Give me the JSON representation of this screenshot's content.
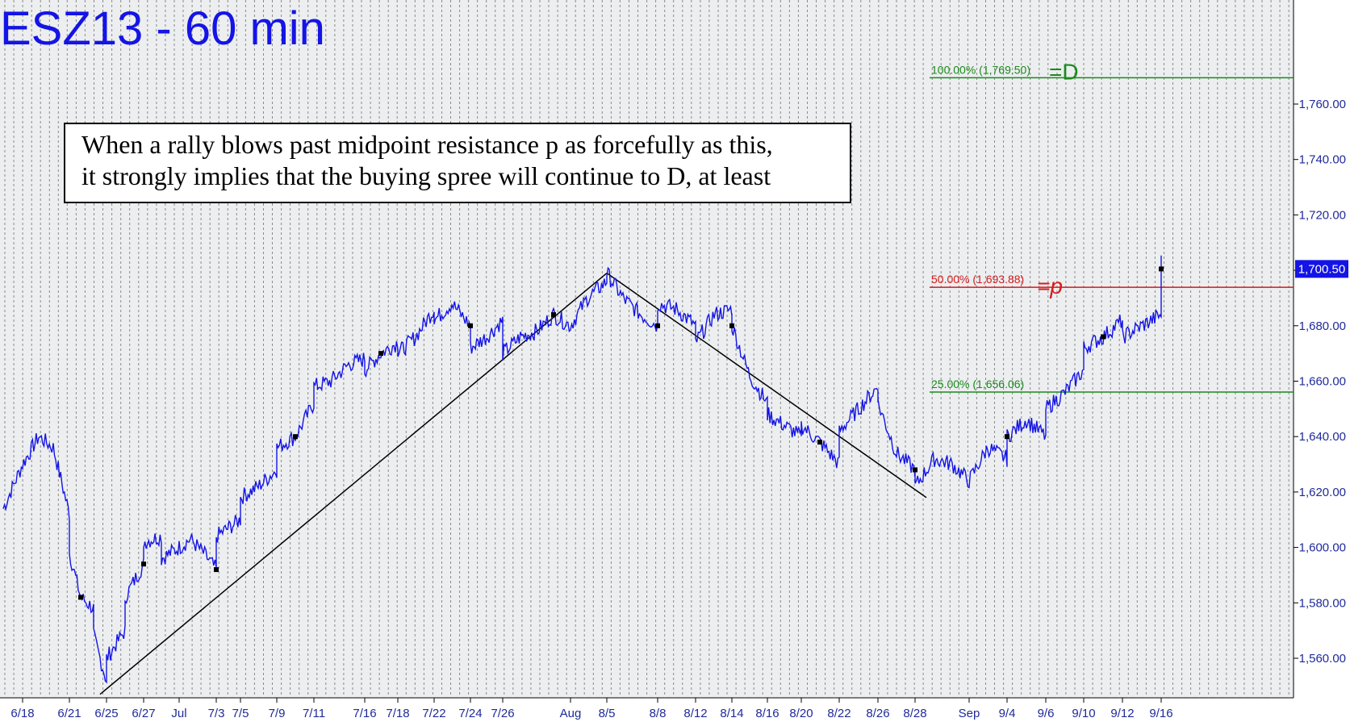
{
  "title": "ESZ13 - 60 min",
  "annotation": {
    "line1": "When a rally blows past midpoint resistance p as forcefully as this,",
    "line2": "it strongly implies that the buying spree will continue to D, at least"
  },
  "colors": {
    "price": "#1414e6",
    "trendline": "#000000",
    "fib_green": "#1a8a1a",
    "fib_red": "#d41c1c",
    "grid": "#8a8a8a",
    "axis_text": "#1f2a99",
    "background": "#eceef0"
  },
  "chart_data": {
    "type": "line",
    "title": "ESZ13 - 60 min",
    "x_tick_labels": [
      "6/18",
      "6/21",
      "6/25",
      "6/27",
      "Jul",
      "7/3",
      "7/5",
      "7/9",
      "7/11",
      "7/16",
      "7/18",
      "7/22",
      "7/24",
      "7/26",
      "Aug",
      "8/5",
      "8/8",
      "8/12",
      "8/14",
      "8/16",
      "8/20",
      "8/22",
      "8/26",
      "8/28",
      "Sep",
      "9/4",
      "9/6",
      "9/10",
      "9/12",
      "9/16"
    ],
    "y_ticks": [
      "1,560.00",
      "1,580.00",
      "1,600.00",
      "1,620.00",
      "1,640.00",
      "1,660.00",
      "1,680.00",
      "1,700.00",
      "1,720.00",
      "1,740.00",
      "1,760.00"
    ],
    "ylim": [
      1545,
      1780
    ],
    "grid": true,
    "last_price": {
      "value": 1700.5,
      "label": "1,700.50"
    },
    "fib_levels": [
      {
        "pct": "100.00%",
        "value": 1769.5,
        "label": "100.00% (1,769.50)",
        "marker": "=D",
        "color": "green"
      },
      {
        "pct": "50.00%",
        "value": 1693.88,
        "label": "50.00% (1,693.88)",
        "marker": "=p",
        "color": "red"
      },
      {
        "pct": "25.00%",
        "value": 1656.06,
        "label": "25.00% (1,656.06)",
        "color": "green"
      }
    ],
    "trendlines": [
      {
        "from": {
          "x": "6/25",
          "y": 1547
        },
        "to": {
          "x": "8/5",
          "y": 1699
        }
      },
      {
        "from": {
          "x": "8/5",
          "y": 1699
        },
        "to": {
          "x": "8/28",
          "y": 1618
        }
      }
    ],
    "series": [
      {
        "points": [
          [
            "6/17",
            1614
          ],
          [
            "6/18",
            1630
          ],
          [
            "6/19",
            1640
          ],
          [
            "6/20",
            1636
          ],
          [
            "6/21",
            1612
          ],
          [
            "6/21",
            1598
          ],
          [
            "6/22",
            1582
          ],
          [
            "6/24",
            1578
          ],
          [
            "6/24",
            1568
          ],
          [
            "6/25",
            1552
          ],
          [
            "6/25",
            1560
          ],
          [
            "6/26",
            1570
          ],
          [
            "6/26",
            1582
          ],
          [
            "6/27",
            1594
          ],
          [
            "6/27",
            1602
          ],
          [
            "6/28",
            1604
          ],
          [
            "6/28",
            1596
          ],
          [
            "Jul",
            1600
          ],
          [
            "7/1",
            1603
          ],
          [
            "7/2",
            1598
          ],
          [
            "7/3",
            1592
          ],
          [
            "7/3",
            1604
          ],
          [
            "7/5",
            1610
          ],
          [
            "7/5",
            1618
          ],
          [
            "7/8",
            1622
          ],
          [
            "7/9",
            1628
          ],
          [
            "7/9",
            1636
          ],
          [
            "7/10",
            1640
          ],
          [
            "7/11",
            1652
          ],
          [
            "7/11",
            1658
          ],
          [
            "7/12",
            1660
          ],
          [
            "7/15",
            1666
          ],
          [
            "7/16",
            1668
          ],
          [
            "7/16",
            1664
          ],
          [
            "7/17",
            1670
          ],
          [
            "7/18",
            1674
          ],
          [
            "7/18",
            1670
          ],
          [
            "7/19",
            1676
          ],
          [
            "7/22",
            1686
          ],
          [
            "7/22",
            1682
          ],
          [
            "7/23",
            1688
          ],
          [
            "7/24",
            1680
          ],
          [
            "7/24",
            1672
          ],
          [
            "7/25",
            1676
          ],
          [
            "7/26",
            1682
          ],
          [
            "7/26",
            1670
          ],
          [
            "7/29",
            1676
          ],
          [
            "7/30",
            1678
          ],
          [
            "7/31",
            1684
          ],
          [
            "Aug",
            1680
          ],
          [
            "8/2",
            1690
          ],
          [
            "8/5",
            1696
          ],
          [
            "8/5",
            1699
          ],
          [
            "8/6",
            1690
          ],
          [
            "8/7",
            1684
          ],
          [
            "8/8",
            1680
          ],
          [
            "8/8",
            1688
          ],
          [
            "8/9",
            1686
          ],
          [
            "8/12",
            1680
          ],
          [
            "8/12",
            1674
          ],
          [
            "8/13",
            1684
          ],
          [
            "8/14",
            1686
          ],
          [
            "8/14",
            1680
          ],
          [
            "8/15",
            1662
          ],
          [
            "8/16",
            1652
          ],
          [
            "8/16",
            1648
          ],
          [
            "8/19",
            1644
          ],
          [
            "8/20",
            1640
          ],
          [
            "8/20",
            1644
          ],
          [
            "8/21",
            1638
          ],
          [
            "8/22",
            1630
          ],
          [
            "8/22",
            1642
          ],
          [
            "8/23",
            1650
          ],
          [
            "8/26",
            1658
          ],
          [
            "8/26",
            1652
          ],
          [
            "8/27",
            1634
          ],
          [
            "8/28",
            1628
          ],
          [
            "8/28",
            1622
          ],
          [
            "8/29",
            1632
          ],
          [
            "8/30",
            1630
          ],
          [
            "Sep",
            1624
          ],
          [
            "9/3",
            1636
          ],
          [
            "9/4",
            1632
          ],
          [
            "9/4",
            1640
          ],
          [
            "9/5",
            1646
          ],
          [
            "9/6",
            1640
          ],
          [
            "9/6",
            1650
          ],
          [
            "9/9",
            1656
          ],
          [
            "9/10",
            1664
          ],
          [
            "9/10",
            1672
          ],
          [
            "9/11",
            1676
          ],
          [
            "9/12",
            1682
          ],
          [
            "9/12",
            1676
          ],
          [
            "9/13",
            1680
          ],
          [
            "9/16",
            1684
          ],
          [
            "9/16",
            1692
          ],
          [
            "9/16",
            1703
          ],
          [
            "9/16",
            1700.5
          ]
        ]
      }
    ]
  }
}
